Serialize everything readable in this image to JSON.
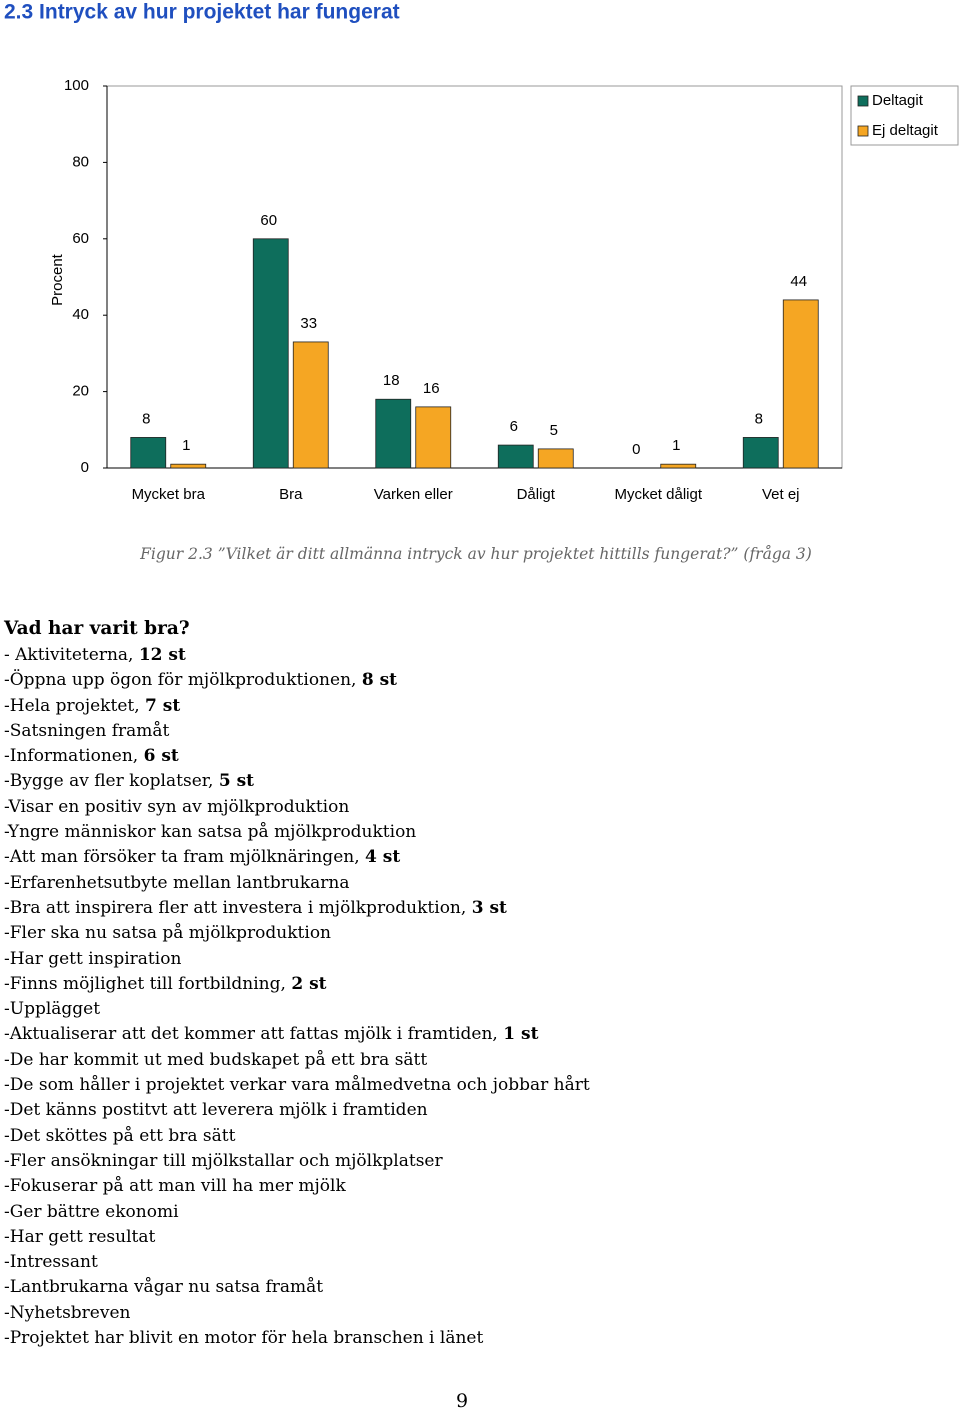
{
  "header": {
    "title": "2.3 Intryck av hur projektet har fungerat"
  },
  "chart_data": {
    "type": "bar",
    "y_label": "Procent",
    "categories": [
      "Mycket bra",
      "Bra",
      "Varken eller",
      "Dåligt",
      "Mycket dåligt",
      "Vet ej"
    ],
    "series": [
      {
        "name": "Deltagit",
        "color": "#0e6e5c",
        "values": [
          8,
          60,
          18,
          6,
          0,
          8
        ]
      },
      {
        "name": "Ej deltagit",
        "color": "#f5a623",
        "values": [
          1,
          33,
          16,
          5,
          1,
          44
        ]
      }
    ],
    "ylim": [
      0,
      100
    ],
    "yticks": [
      0,
      20,
      40,
      60,
      80,
      100
    ],
    "grid": false,
    "legend": "right"
  },
  "caption": "Figur 2.3 ”Vilket är ditt allmänna intryck av hur projektet hittills fungerat?” (fråga 3)",
  "section": {
    "title": "Vad har varit bra?",
    "items": [
      {
        "text": "- Aktiviteterna,",
        "count": "12 st"
      },
      {
        "text": "-Öppna upp ögon för mjölkproduktionen,",
        "count": "8 st"
      },
      {
        "text": "-Hela projektet,",
        "count": "7 st"
      },
      {
        "text": "-Satsningen framåt"
      },
      {
        "text": "-Informationen,",
        "count": "6 st"
      },
      {
        "text": "-Bygge av fler koplatser,",
        "count": "5 st"
      },
      {
        "text": "-Visar en positiv syn av mjölkproduktion"
      },
      {
        "text": "-Yngre människor kan satsa på mjölkproduktion"
      },
      {
        "text": "-Att man försöker ta fram mjölknäringen,",
        "count": "4 st"
      },
      {
        "text": "-Erfarenhetsutbyte mellan lantbrukarna"
      },
      {
        "text": "-Bra att inspirera fler att investera i mjölkproduktion,",
        "count": "3 st"
      },
      {
        "text": "-Fler ska nu satsa på mjölkproduktion"
      },
      {
        "text": "-Har gett inspiration"
      },
      {
        "text": "-Finns möjlighet till fortbildning,",
        "count": "2 st"
      },
      {
        "text": "-Upplägget"
      },
      {
        "text": "-Aktualiserar att det kommer att fattas mjölk i framtiden,",
        "count": "1 st"
      },
      {
        "text": "-De har kommit ut med budskapet på ett bra sätt"
      },
      {
        "text": "-De som håller i projektet verkar vara målmedvetna och jobbar hårt"
      },
      {
        "text": "-Det känns postitvt att leverera mjölk i framtiden"
      },
      {
        "text": "-Det sköttes på ett bra sätt"
      },
      {
        "text": "-Fler ansökningar till mjölkstallar och mjölkplatser"
      },
      {
        "text": "-Fokuserar på att man vill ha mer mjölk"
      },
      {
        "text": "-Ger bättre ekonomi"
      },
      {
        "text": "-Har gett resultat"
      },
      {
        "text": "-Intressant"
      },
      {
        "text": "-Lantbrukarna vågar nu satsa framåt"
      },
      {
        "text": "-Nyhetsbreven"
      },
      {
        "text": "-Projektet har blivit en motor för hela branschen i länet"
      }
    ]
  },
  "page_number": "9"
}
